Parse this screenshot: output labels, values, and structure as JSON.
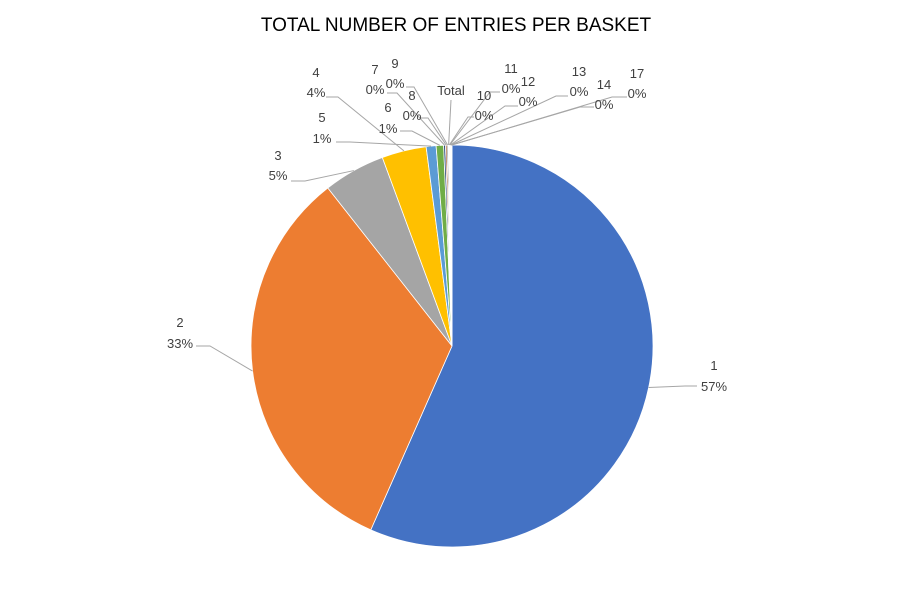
{
  "chart_data": {
    "type": "pie",
    "title": "TOTAL NUMBER OF ENTRIES PER BASKET",
    "slices": [
      {
        "category": "1",
        "value": 57,
        "label": "57%",
        "color": "#4472C4"
      },
      {
        "category": "2",
        "value": 33,
        "label": "33%",
        "color": "#ED7D31"
      },
      {
        "category": "3",
        "value": 5,
        "label": "5%",
        "color": "#A5A5A5"
      },
      {
        "category": "4",
        "value": 3.6,
        "label": "4%",
        "color": "#FFC000"
      },
      {
        "category": "5",
        "value": 0.8,
        "label": "1%",
        "color": "#5B9BD5"
      },
      {
        "category": "6",
        "value": 0.6,
        "label": "1%",
        "color": "#70AD47"
      },
      {
        "category": "7",
        "value": 0.15,
        "label": "0%",
        "color": "#264478"
      },
      {
        "category": "8",
        "value": 0.12,
        "label": "0%",
        "color": "#9E480E"
      },
      {
        "category": "9",
        "value": 0.1,
        "label": "0%",
        "color": "#636363"
      },
      {
        "category": "Total",
        "value": 0.06,
        "label": "",
        "color": "#997300"
      },
      {
        "category": "10",
        "value": 0.05,
        "label": "0%",
        "color": "#255E91"
      },
      {
        "category": "11",
        "value": 0.05,
        "label": "0%",
        "color": "#43682B"
      },
      {
        "category": "12",
        "value": 0.04,
        "label": "0%",
        "color": "#698ED0"
      },
      {
        "category": "13",
        "value": 0.04,
        "label": "0%",
        "color": "#F1975A"
      },
      {
        "category": "14",
        "value": 0.03,
        "label": "0%",
        "color": "#B7B7B7"
      },
      {
        "category": "17",
        "value": 0.03,
        "label": "0%",
        "color": "#FFCD33"
      }
    ]
  }
}
